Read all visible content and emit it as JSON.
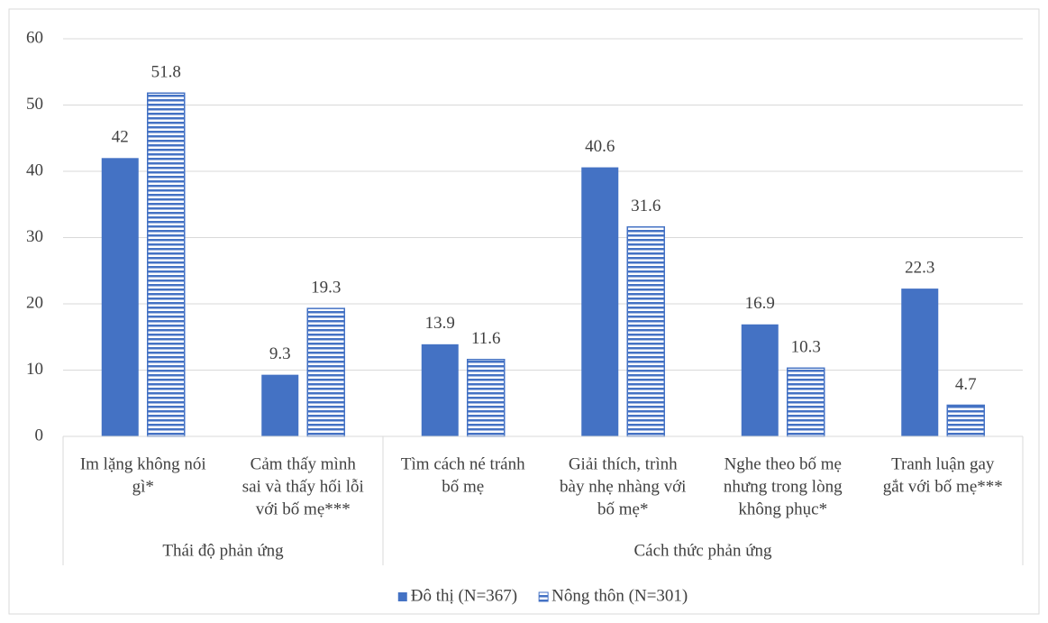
{
  "chart_data": {
    "type": "bar",
    "groups": [
      {
        "name": "Thái độ phản ứng",
        "categories": [
          [
            "Im lặng không nói",
            "gì*"
          ],
          [
            "Cảm thấy mình",
            "sai và thấy hối lỗi",
            "với bố mẹ***"
          ]
        ]
      },
      {
        "name": "Cách thức phản ứng",
        "categories": [
          [
            "Tìm cách né tránh",
            "bố mẹ"
          ],
          [
            "Giải thích, trình",
            "bày nhẹ nhàng với",
            "bố mẹ*"
          ],
          [
            "Nghe theo bố mẹ",
            "nhưng trong lòng",
            "không phục*"
          ],
          [
            "Tranh luận gay",
            "gắt với bố mẹ***"
          ]
        ]
      }
    ],
    "series": [
      {
        "name": "Đô thị (N=367)",
        "color": "#4472c4",
        "pattern": "solid",
        "values": [
          42,
          9.3,
          13.9,
          40.6,
          16.9,
          22.3
        ]
      },
      {
        "name": "Nông thôn (N=301)",
        "color": "#4472c4",
        "pattern": "horizontal",
        "values": [
          51.8,
          19.3,
          11.6,
          31.6,
          10.3,
          4.7
        ]
      }
    ],
    "ylim": [
      0,
      60
    ],
    "yticks": [
      0,
      10,
      20,
      30,
      40,
      50,
      60
    ],
    "grid": true,
    "legend": "bottom"
  }
}
